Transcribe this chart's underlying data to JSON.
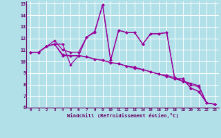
{
  "xlabel": "Windchill (Refroidissement éolien,°C)",
  "background_color": "#b2e0e8",
  "grid_color": "#ffffff",
  "line_color": "#990099",
  "xlim": [
    -0.5,
    23.5
  ],
  "ylim": [
    6,
    15.2
  ],
  "xticks": [
    0,
    1,
    2,
    3,
    4,
    5,
    6,
    7,
    8,
    9,
    10,
    11,
    12,
    13,
    14,
    15,
    16,
    17,
    18,
    19,
    20,
    21,
    22,
    23
  ],
  "yticks": [
    6,
    7,
    8,
    9,
    10,
    11,
    12,
    13,
    14,
    15
  ],
  "series": [
    [
      10.8,
      10.8,
      11.3,
      11.5,
      11.5,
      9.7,
      10.5,
      12.1,
      12.6,
      14.9,
      10.1,
      12.7,
      12.5,
      12.5,
      11.5,
      12.4,
      12.4,
      12.5,
      8.5,
      8.5,
      7.7,
      7.4,
      6.4,
      6.3
    ],
    [
      10.8,
      10.8,
      11.3,
      11.5,
      10.5,
      10.5,
      10.5,
      10.4,
      10.2,
      10.1,
      9.9,
      9.8,
      9.6,
      9.4,
      9.3,
      9.1,
      8.9,
      8.7,
      8.5,
      8.3,
      8.1,
      7.9,
      6.4,
      6.3
    ],
    [
      10.8,
      10.8,
      11.3,
      11.5,
      10.6,
      10.5,
      10.5,
      10.4,
      10.2,
      10.1,
      9.9,
      9.8,
      9.6,
      9.5,
      9.3,
      9.1,
      8.9,
      8.8,
      8.6,
      8.3,
      8.0,
      7.8,
      6.4,
      6.3
    ],
    [
      10.8,
      10.8,
      11.3,
      11.8,
      11.0,
      10.8,
      10.8,
      12.1,
      12.5,
      14.9,
      10.1,
      12.7,
      12.5,
      12.5,
      11.5,
      12.4,
      12.4,
      12.5,
      8.5,
      8.5,
      7.7,
      7.4,
      6.4,
      6.3
    ]
  ]
}
